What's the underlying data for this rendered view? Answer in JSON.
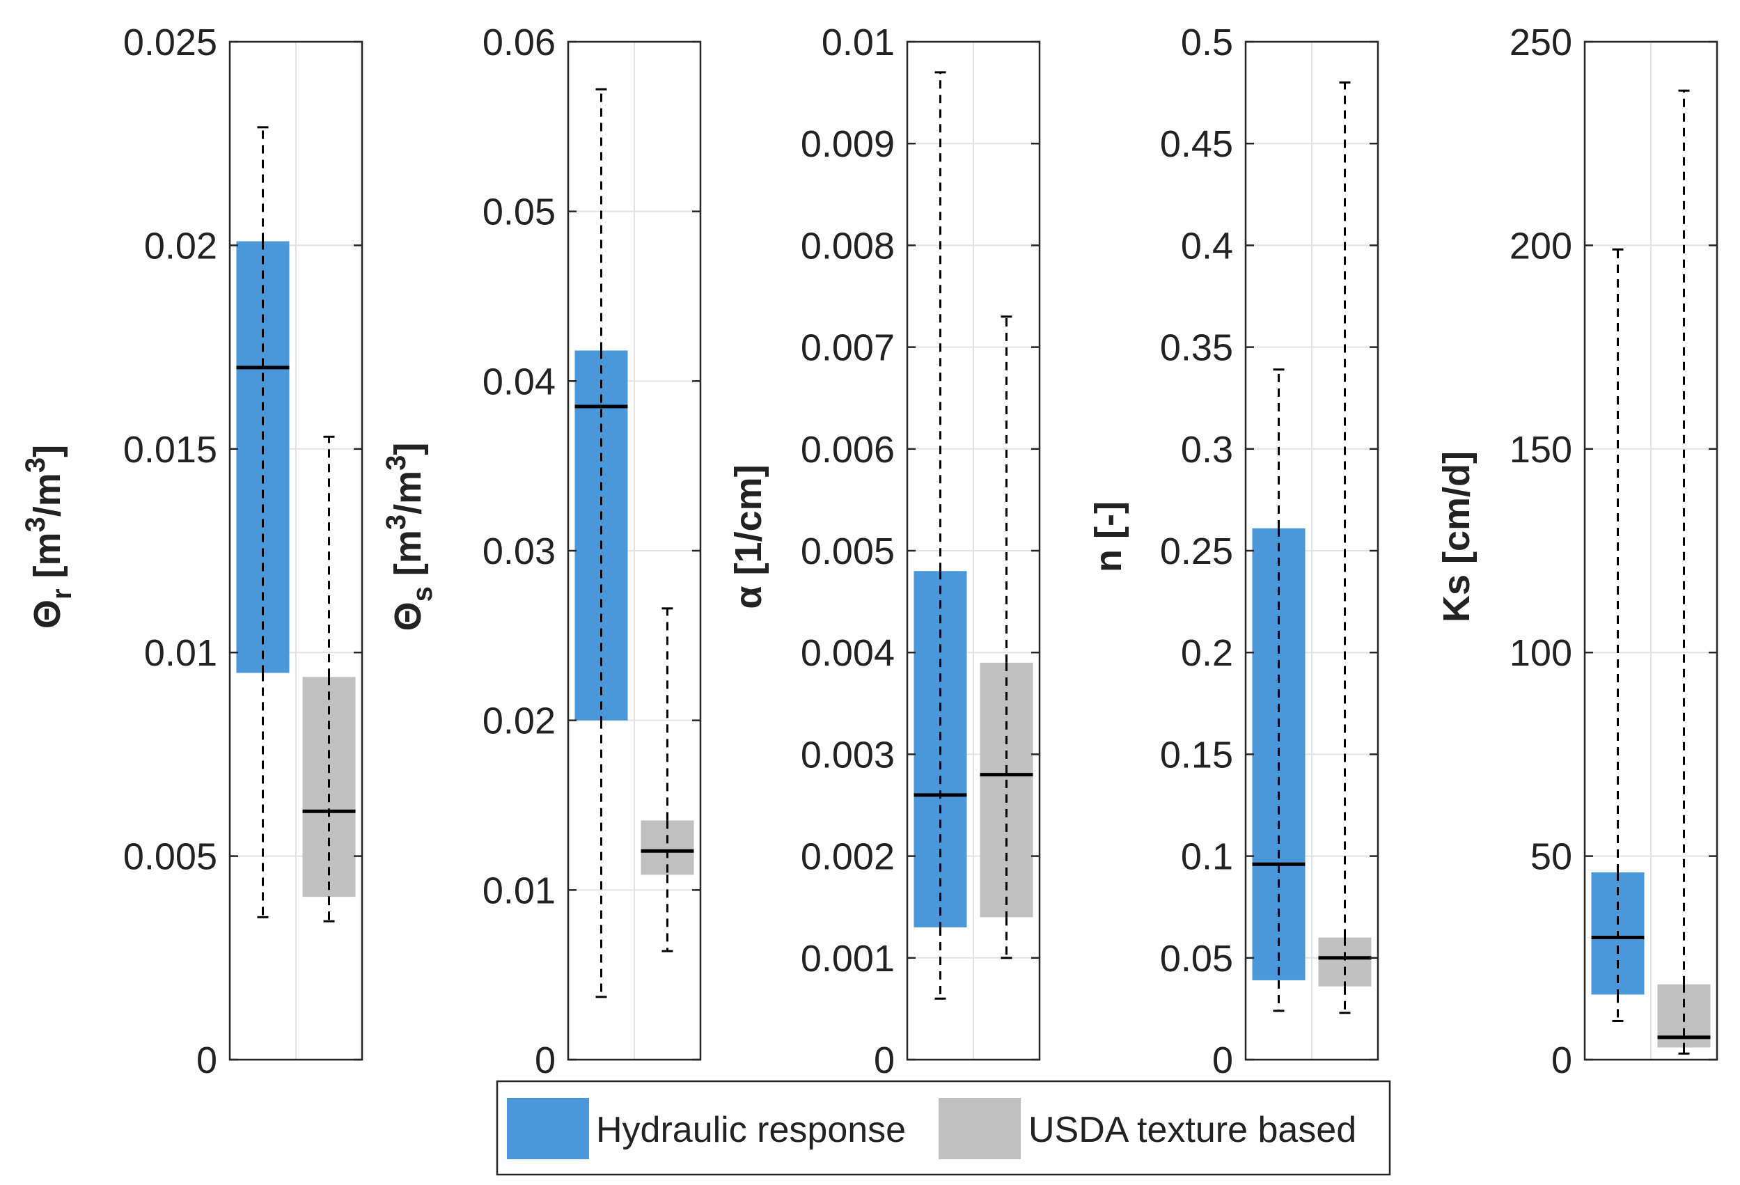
{
  "colors": {
    "series_a": "#4A97D9",
    "series_b": "#C0C0C0",
    "median": "#000000",
    "axis": "#262626",
    "grid": "#E3E3E3"
  },
  "legend": {
    "items": [
      {
        "label": "Hydraulic response",
        "color": "#4A97D9"
      },
      {
        "label": "USDA texture based",
        "color": "#C0C0C0"
      }
    ],
    "placement": "bottom-center"
  },
  "chart_data": [
    {
      "type": "box",
      "ylabel": {
        "symbol": "Θ",
        "sub": "r",
        "unit_pre": "[m",
        "unit_mid": "/m",
        "unit_post": "]",
        "sup": "3"
      },
      "ylim": [
        0,
        0.025
      ],
      "ticks": [
        0,
        0.005,
        0.01,
        0.015,
        0.02,
        0.025
      ],
      "tick_labels": [
        "0",
        "0.005",
        "0.01",
        "0.015",
        "0.02",
        "0.025"
      ],
      "series": [
        {
          "name": "Hydraulic response",
          "q1": 0.0095,
          "median": 0.017,
          "q3": 0.0201,
          "whisker_low": 0.0035,
          "whisker_high": 0.0229
        },
        {
          "name": "USDA texture based",
          "q1": 0.004,
          "median": 0.0061,
          "q3": 0.0094,
          "whisker_low": 0.0034,
          "whisker_high": 0.0153
        }
      ]
    },
    {
      "type": "box",
      "ylabel": {
        "symbol": "Θ",
        "sub": "s",
        "unit_pre": "[m",
        "unit_mid": "/m",
        "unit_post": "]",
        "sup": "3"
      },
      "ylim": [
        0,
        0.06
      ],
      "ticks": [
        0,
        0.01,
        0.02,
        0.03,
        0.04,
        0.05,
        0.06
      ],
      "tick_labels": [
        "0",
        "0.01",
        "0.02",
        "0.03",
        "0.04",
        "0.05",
        "0.06"
      ],
      "series": [
        {
          "name": "Hydraulic response",
          "q1": 0.02,
          "median": 0.0385,
          "q3": 0.0418,
          "whisker_low": 0.0037,
          "whisker_high": 0.0572
        },
        {
          "name": "USDA texture based",
          "q1": 0.0109,
          "median": 0.0123,
          "q3": 0.0141,
          "whisker_low": 0.0064,
          "whisker_high": 0.0266
        }
      ]
    },
    {
      "type": "box",
      "ylabel": {
        "symbol": "α",
        "sub": "",
        "unit_pre": "[1/cm]",
        "unit_mid": "",
        "unit_post": "",
        "sup": ""
      },
      "ylim": [
        0,
        0.01
      ],
      "ticks": [
        0,
        0.001,
        0.002,
        0.003,
        0.004,
        0.005,
        0.006,
        0.007,
        0.008,
        0.009,
        0.01
      ],
      "tick_labels": [
        "0",
        "0.001",
        "0.002",
        "0.003",
        "0.004",
        "0.005",
        "0.006",
        "0.007",
        "0.008",
        "0.009",
        "0.01"
      ],
      "series": [
        {
          "name": "Hydraulic response",
          "q1": 0.0013,
          "median": 0.0026,
          "q3": 0.0048,
          "whisker_low": 0.0006,
          "whisker_high": 0.0097
        },
        {
          "name": "USDA texture based",
          "q1": 0.0014,
          "median": 0.0028,
          "q3": 0.0039,
          "whisker_low": 0.001,
          "whisker_high": 0.0073
        }
      ]
    },
    {
      "type": "box",
      "ylabel": {
        "symbol": "n [-]",
        "sub": "",
        "unit_pre": "",
        "unit_mid": "",
        "unit_post": "",
        "sup": ""
      },
      "ylim": [
        0,
        0.5
      ],
      "ticks": [
        0,
        0.05,
        0.1,
        0.15,
        0.2,
        0.25,
        0.3,
        0.35,
        0.4,
        0.45,
        0.5
      ],
      "tick_labels": [
        "0",
        "0.05",
        "0.1",
        "0.15",
        "0.2",
        "0.25",
        "0.3",
        "0.35",
        "0.4",
        "0.45",
        "0.5"
      ],
      "series": [
        {
          "name": "Hydraulic response",
          "q1": 0.039,
          "median": 0.096,
          "q3": 0.261,
          "whisker_low": 0.024,
          "whisker_high": 0.339
        },
        {
          "name": "USDA texture based",
          "q1": 0.036,
          "median": 0.05,
          "q3": 0.06,
          "whisker_low": 0.023,
          "whisker_high": 0.48
        }
      ]
    },
    {
      "type": "box",
      "ylabel": {
        "symbol": "Ks [cm/d]",
        "sub": "",
        "unit_pre": "",
        "unit_mid": "",
        "unit_post": "",
        "sup": ""
      },
      "ylim": [
        0,
        250
      ],
      "ticks": [
        0,
        50,
        100,
        150,
        200,
        250
      ],
      "tick_labels": [
        "0",
        "50",
        "100",
        "150",
        "200",
        "250"
      ],
      "series": [
        {
          "name": "Hydraulic response",
          "q1": 16,
          "median": 30,
          "q3": 46,
          "whisker_low": 9.5,
          "whisker_high": 199
        },
        {
          "name": "USDA texture based",
          "q1": 3,
          "median": 5.5,
          "q3": 18.5,
          "whisker_low": 1.5,
          "whisker_high": 238
        }
      ]
    }
  ]
}
